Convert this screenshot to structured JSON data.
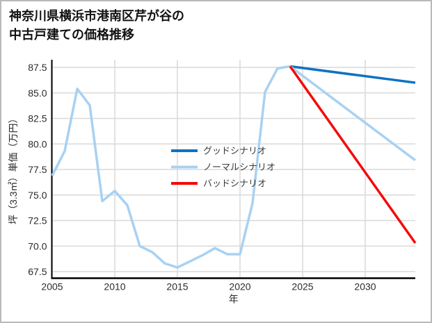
{
  "title": {
    "line1": "神奈川県横浜市港南区芹が谷の",
    "line2": "中古戸建ての価格推移"
  },
  "chart_data": {
    "type": "line",
    "title": "神奈川県横浜市港南区芹が谷の中古戸建ての価格推移",
    "xlabel": "年",
    "ylabel": "坪（3.3㎡）単価（万円）",
    "xlim": [
      2005,
      2034.9
    ],
    "ylim": [
      66.9,
      88.3
    ],
    "x_ticks": [
      2005,
      2010,
      2015,
      2020,
      2025,
      2030
    ],
    "y_ticks": [
      67.5,
      70.0,
      72.5,
      75.0,
      77.5,
      80.0,
      82.5,
      85.0,
      87.5
    ],
    "grid": true,
    "grid_color": "#d9d9d9",
    "spine_color": "#000000",
    "legend_position": "center-inside",
    "series": [
      {
        "name": "グッドシナリオ",
        "color": "#0d72c2",
        "line_width": 3.5,
        "x": [
          2024,
          2034
        ],
        "values": [
          87.6,
          86.0
        ]
      },
      {
        "name": "ノーマルシナリオ",
        "color": "#a8d1f2",
        "line_width": 3.5,
        "x": [
          2005,
          2006,
          2007,
          2008,
          2009,
          2010,
          2011,
          2012,
          2013,
          2014,
          2015,
          2016,
          2017,
          2018,
          2019,
          2020,
          2021,
          2022,
          2023,
          2024,
          2034
        ],
        "values": [
          76.9,
          79.3,
          85.4,
          83.8,
          74.4,
          75.4,
          74.0,
          70.0,
          69.4,
          68.3,
          67.9,
          68.5,
          69.1,
          69.8,
          69.2,
          69.2,
          74.2,
          85.1,
          87.4,
          87.6,
          78.4
        ]
      },
      {
        "name": "バッドシナリオ",
        "color": "#f40a0a",
        "line_width": 3.5,
        "x": [
          2024,
          2034
        ],
        "values": [
          87.6,
          70.3
        ]
      }
    ]
  }
}
